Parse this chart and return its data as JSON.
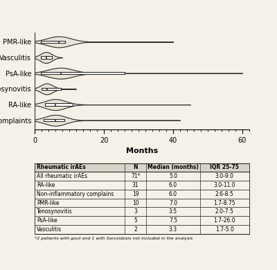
{
  "categories": [
    "PMR-like",
    "Vasculitis",
    "PsA-like",
    "Tenosynovitis",
    "RA-like",
    "Non-inflammatory complaints"
  ],
  "medians": [
    7.0,
    3.3,
    7.5,
    3.5,
    6.0,
    6.0
  ],
  "q1s": [
    1.7,
    1.7,
    1.7,
    2.0,
    3.0,
    2.6
  ],
  "q3s": [
    8.75,
    5.0,
    26.0,
    7.5,
    11.0,
    8.5
  ],
  "maxvals": [
    40,
    8,
    60,
    12,
    45,
    42
  ],
  "ns": [
    10,
    2,
    5,
    3,
    31,
    19
  ],
  "xlim": [
    0,
    62
  ],
  "xlabel": "Months",
  "table_rows": [
    [
      "All rheumatic irAEs",
      "71*",
      "5.0",
      "3.0-9.0"
    ],
    [
      "RA-like",
      "31",
      "6.0",
      "3.0-11.0"
    ],
    [
      "Non-inflammatory complains",
      "19",
      "6.0",
      "2.6-8.5"
    ],
    [
      "PMR-like",
      "10",
      "7.0",
      "1.7-8.75"
    ],
    [
      "Tenosynovitis",
      "3",
      "3.5",
      "2.0-7.5"
    ],
    [
      "PsA-like",
      "5",
      "7.5",
      "1.7-26.0"
    ],
    [
      "Vasculitis",
      "2",
      "3.3",
      "1.7-5.0"
    ]
  ],
  "table_headers": [
    "Rheumatic irAEs",
    "N",
    "Median (months)",
    "IQR 25-75"
  ],
  "footnote": "*2 patients with gout and 1 with Sarcoidosis not included in the analysis",
  "bg_color": "#f5f0e8",
  "line_color": "#2a2a2a",
  "violin_color": "#e8e4d8"
}
